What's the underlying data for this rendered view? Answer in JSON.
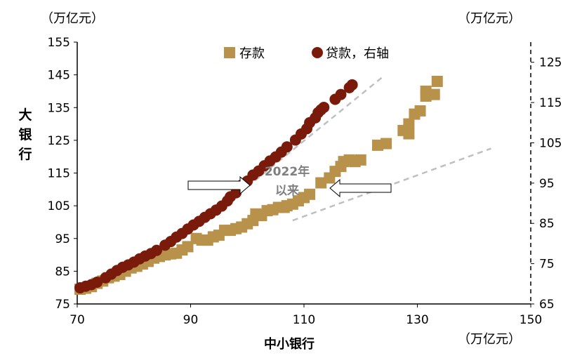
{
  "chart_data": {
    "type": "scatter",
    "left_axis_unit": "（万亿元）",
    "right_axis_unit": "（万亿元）",
    "bottom_axis_unit": "（万亿元）",
    "ylabel": "大银行",
    "xlabel": "中小银行",
    "annotation": [
      "2022年",
      "以来"
    ],
    "xlim": [
      70,
      150
    ],
    "ylim_left": [
      75,
      155
    ],
    "ylim_right": [
      65,
      130
    ],
    "x_ticks": [
      70,
      90,
      110,
      130,
      150
    ],
    "y_left_ticks": [
      75,
      85,
      95,
      105,
      115,
      125,
      135,
      145,
      155
    ],
    "y_right_ticks": [
      65,
      75,
      85,
      95,
      105,
      115,
      125
    ],
    "legend_position": "top",
    "colors": {
      "deposit": "#B8914A",
      "loan": "#7A1A0A",
      "trend": "#BFBFBF"
    },
    "series": [
      {
        "name": "存款",
        "marker": "square",
        "axis": "left",
        "points": [
          [
            70.5,
            79.5
          ],
          [
            71.5,
            79.8
          ],
          [
            72.5,
            80.3
          ],
          [
            73.5,
            81.3
          ],
          [
            74.5,
            82.0
          ],
          [
            75.5,
            83.0
          ],
          [
            76.5,
            83.5
          ],
          [
            77.5,
            84.0
          ],
          [
            78.5,
            85.0
          ],
          [
            79.5,
            86.0
          ],
          [
            80.5,
            86.5
          ],
          [
            81.5,
            87.2
          ],
          [
            82.5,
            88.0
          ],
          [
            83.5,
            89.0
          ],
          [
            84.5,
            89.5
          ],
          [
            85.5,
            90.0
          ],
          [
            86.5,
            90.3
          ],
          [
            87.5,
            90.5
          ],
          [
            88.5,
            91.5
          ],
          [
            89.5,
            92.5
          ],
          [
            91.0,
            95.0
          ],
          [
            92.0,
            94.5
          ],
          [
            93.0,
            94.5
          ],
          [
            94.0,
            95.5
          ],
          [
            95.0,
            96.0
          ],
          [
            96.0,
            97.5
          ],
          [
            97.0,
            97.5
          ],
          [
            98.0,
            98.0
          ],
          [
            99.0,
            98.5
          ],
          [
            100.0,
            99.5
          ],
          [
            101.0,
            100.5
          ],
          [
            101.5,
            102.5
          ],
          [
            102.5,
            102.0
          ],
          [
            103.5,
            103.5
          ],
          [
            104.5,
            103.8
          ],
          [
            105.5,
            104.5
          ],
          [
            106.5,
            104.5
          ],
          [
            107.0,
            105.0
          ],
          [
            108.0,
            105.5
          ],
          [
            109.0,
            106.5
          ],
          [
            110.0,
            107.5
          ],
          [
            111.0,
            108.5
          ],
          [
            113.0,
            112.0
          ],
          [
            114.5,
            113.5
          ],
          [
            115.5,
            115.5
          ],
          [
            116.5,
            117.0
          ],
          [
            117.0,
            118.5
          ],
          [
            118.0,
            119.0
          ],
          [
            119.0,
            118.5
          ],
          [
            120.0,
            119.0
          ],
          [
            123.0,
            123.5
          ],
          [
            124.5,
            124.0
          ],
          [
            127.5,
            128.0
          ],
          [
            128.5,
            130.0
          ],
          [
            128.5,
            127.0
          ],
          [
            129.5,
            133.0
          ],
          [
            130.5,
            134.0
          ],
          [
            131.5,
            138.5
          ],
          [
            131.5,
            140.0
          ],
          [
            133.0,
            139.0
          ],
          [
            133.5,
            143.0
          ]
        ]
      },
      {
        "name": "贷款，右轴",
        "marker": "circle",
        "axis": "right",
        "points": [
          [
            70.5,
            69.0
          ],
          [
            71.5,
            69.4
          ],
          [
            72.5,
            69.8
          ],
          [
            73.5,
            70.4
          ],
          [
            75.0,
            71.5
          ],
          [
            76.0,
            72.4
          ],
          [
            77.0,
            73.3
          ],
          [
            78.0,
            74.1
          ],
          [
            79.0,
            74.7
          ],
          [
            80.0,
            75.4
          ],
          [
            81.0,
            76.2
          ],
          [
            82.0,
            76.9
          ],
          [
            83.0,
            77.5
          ],
          [
            84.0,
            78.3
          ],
          [
            85.5,
            79.6
          ],
          [
            86.5,
            80.5
          ],
          [
            87.5,
            81.6
          ],
          [
            88.5,
            82.5
          ],
          [
            89.5,
            83.6
          ],
          [
            90.5,
            84.6
          ],
          [
            91.5,
            85.5
          ],
          [
            92.5,
            86.5
          ],
          [
            93.5,
            87.4
          ],
          [
            94.5,
            88.3
          ],
          [
            95.5,
            89.3
          ],
          [
            96.5,
            90.6
          ],
          [
            97.0,
            91.6
          ],
          [
            98.0,
            92.6
          ],
          [
            99.0,
            94.5
          ],
          [
            100.0,
            95.5
          ],
          [
            101.0,
            97.0
          ],
          [
            102.0,
            98.0
          ],
          [
            103.0,
            99.3
          ],
          [
            104.0,
            100.5
          ],
          [
            105.0,
            101.5
          ],
          [
            106.0,
            102.7
          ],
          [
            107.0,
            104.0
          ],
          [
            108.5,
            105.7
          ],
          [
            109.5,
            107.2
          ],
          [
            110.5,
            108.5
          ],
          [
            111.0,
            110.0
          ],
          [
            112.0,
            111.2
          ],
          [
            112.5,
            112.5
          ],
          [
            113.0,
            113.2
          ],
          [
            113.5,
            113.8
          ],
          [
            115.5,
            115.8
          ],
          [
            116.5,
            117.0
          ],
          [
            118.0,
            118.7
          ],
          [
            118.5,
            119.4
          ]
        ]
      }
    ],
    "trend_lines": [
      {
        "axis": "right",
        "from": [
          96,
          89.5
        ],
        "to": [
          124,
          121.5
        ]
      },
      {
        "axis": "left",
        "from": [
          108,
          100.5
        ],
        "to": [
          143,
          122.5
        ]
      }
    ]
  }
}
